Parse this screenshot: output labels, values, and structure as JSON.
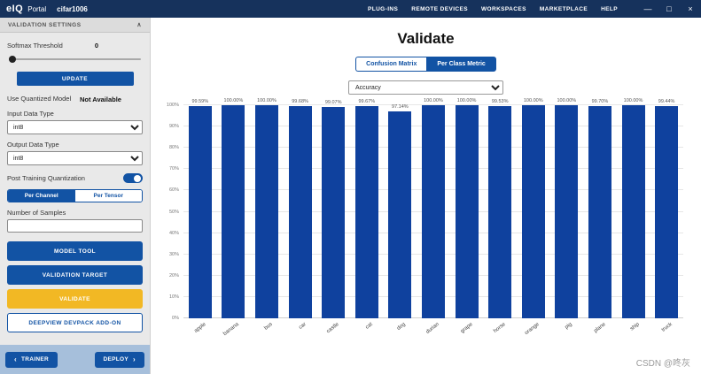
{
  "colors": {
    "accent_blue": "#1253a4",
    "titlebar_navy": "#16325c",
    "validate_yellow": "#f2b824",
    "bar_blue": "#0f419e",
    "footer_strip": "#a6bfdb"
  },
  "titlebar": {
    "logo": "eIQ",
    "app_name": "Portal",
    "project_name": "cifar1006",
    "menu": [
      "PLUG-INS",
      "REMOTE DEVICES",
      "WORKSPACES",
      "MARKETPLACE",
      "HELP"
    ],
    "window": {
      "minimize": "—",
      "maximize": "□",
      "close": "×"
    }
  },
  "sidebar": {
    "header": "VALIDATION SETTINGS",
    "collapse_icon": "∧",
    "softmax": {
      "label": "Softmax Threshold",
      "value": "0"
    },
    "update_button": "UPDATE",
    "quantized": {
      "label": "Use Quantized Model",
      "value": "Not Available"
    },
    "input_type": {
      "label": "Input Data Type",
      "value": "int8"
    },
    "output_type": {
      "label": "Output Data Type",
      "value": "int8"
    },
    "ptq_label": "Post Training Quantization",
    "segmented": {
      "per_channel": "Per Channel",
      "per_tensor": "Per Tensor"
    },
    "samples_label": "Number of Samples",
    "model_tool_button": "MODEL TOOL",
    "validation_target_button": "VALIDATION TARGET",
    "validate_button": "VALIDATE",
    "deepview_button": "DEEPVIEW DEVPACK ADD-ON",
    "footer": {
      "trainer": "TRAINER",
      "deploy": "DEPLOY",
      "back_icon": "‹",
      "forward_icon": "›"
    }
  },
  "main": {
    "title": "Validate",
    "tabs": [
      {
        "label": "Confusion Matrix",
        "active": false
      },
      {
        "label": "Per Class Metric",
        "active": true
      }
    ],
    "metric_select": "Accuracy",
    "watermark": "CSDN @咚灰"
  },
  "chart_data": {
    "type": "bar",
    "title": "",
    "xlabel": "",
    "ylabel": "",
    "categories": [
      "apple",
      "banana",
      "bus",
      "car",
      "castle",
      "cat",
      "dog",
      "durian",
      "grape",
      "horse",
      "orange",
      "pig",
      "plane",
      "ship",
      "truck"
    ],
    "values": [
      99.59,
      100.0,
      100.0,
      99.68,
      99.07,
      99.67,
      97.14,
      100.0,
      100.0,
      99.53,
      100.0,
      100.0,
      99.7,
      100.0,
      99.44
    ],
    "value_labels": [
      "99.59%",
      "100.00%",
      "100.00%",
      "99.68%",
      "99.07%",
      "99.67%",
      "97.14%",
      "100.00%",
      "100.00%",
      "99.53%",
      "100.00%",
      "100.00%",
      "99.70%",
      "100.00%",
      "99.44%"
    ],
    "ylim": [
      0,
      100
    ],
    "ytick_labels": [
      "0%",
      "10%",
      "20%",
      "30%",
      "40%",
      "50%",
      "60%",
      "70%",
      "80%",
      "90%",
      "100%"
    ],
    "grid": true,
    "legend": false,
    "bar_color": "#0f419e"
  }
}
